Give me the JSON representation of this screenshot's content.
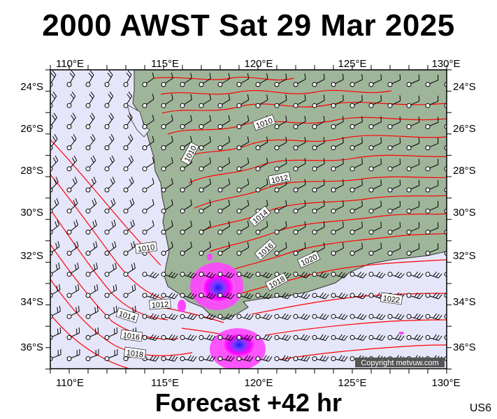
{
  "title": "2000 AWST Sat 29 Mar 2025",
  "subtitle": "Forecast +42 hr",
  "code": "US6",
  "copyright": "Copyright metvuw.com",
  "lon_labels": [
    "110°E",
    "115°E",
    "120°E",
    "125°E",
    "130°E"
  ],
  "lat_labels": [
    "24°S",
    "26°S",
    "28°S",
    "30°S",
    "32°S",
    "34°S",
    "36°S"
  ],
  "isobar_labels": [
    "1010",
    "1010",
    "1012",
    "1014",
    "1016",
    "1018",
    "1020",
    "1022",
    "1010",
    "1012",
    "1014",
    "1016",
    "1018"
  ],
  "colors": {
    "ocean": "#e6e6fa",
    "land": "#9fb59a",
    "isobar": "#ff0000",
    "rain": "#ff00ff",
    "rain_core": "#1a1aff"
  }
}
